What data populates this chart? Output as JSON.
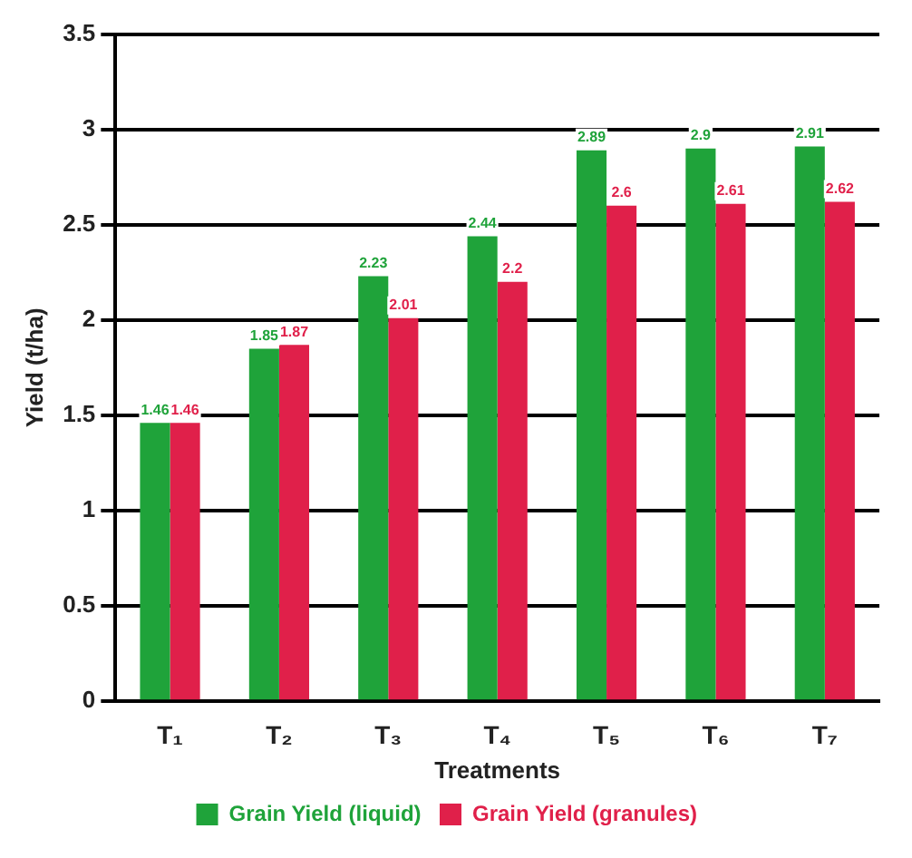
{
  "chart_data": {
    "type": "bar",
    "xlabel": "Treatments",
    "ylabel": "Yield (t/ha)",
    "categories": [
      "T₁",
      "T₂",
      "T₃",
      "T₄",
      "T₅",
      "T₆",
      "T₇"
    ],
    "series": [
      {
        "name": "Grain Yield (liquid)",
        "color": "#1fa33a",
        "values": [
          1.46,
          1.85,
          2.23,
          2.44,
          2.89,
          2.9,
          2.91
        ]
      },
      {
        "name": "Grain Yield (granules)",
        "color": "#e0204a",
        "values": [
          1.46,
          1.87,
          2.01,
          2.2,
          2.6,
          2.61,
          2.62
        ]
      }
    ],
    "ylim": [
      0,
      3.5
    ],
    "yticks": [
      0,
      0.5,
      1,
      1.5,
      2,
      2.5,
      3,
      3.5
    ],
    "grid": "y",
    "legend": "bottom",
    "data_labels": true
  }
}
